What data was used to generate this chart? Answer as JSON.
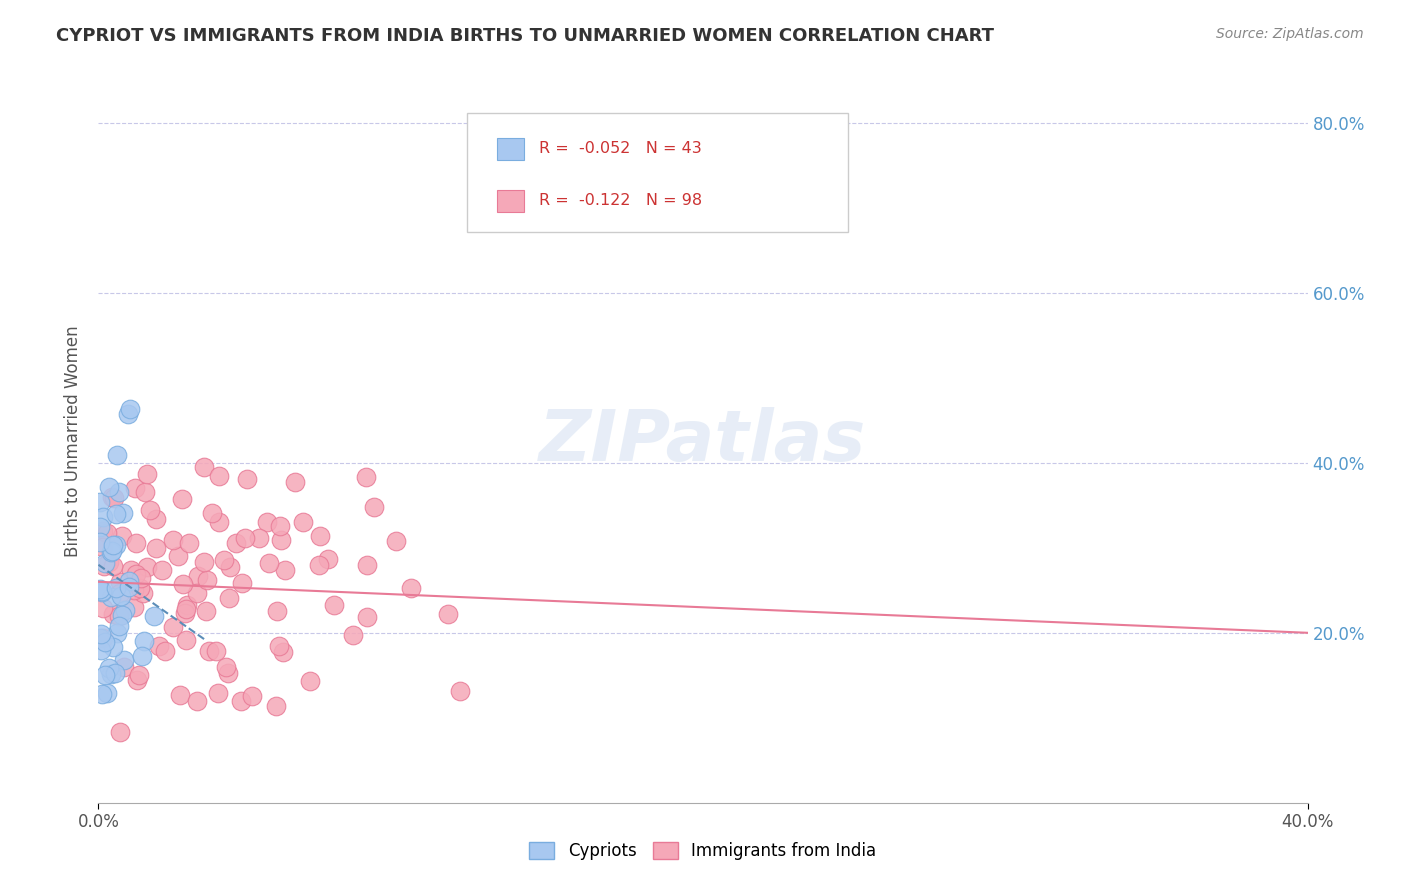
{
  "title": "CYPRIOT VS IMMIGRANTS FROM INDIA BIRTHS TO UNMARRIED WOMEN CORRELATION CHART",
  "source": "Source: ZipAtlas.com",
  "ylabel": "Births to Unmarried Women",
  "xlim": [
    0.0,
    0.4
  ],
  "ylim": [
    0.0,
    0.85
  ],
  "legend_r1": "R =  -0.052   N = 43",
  "legend_r2": "R =  -0.122   N = 98",
  "cypriot_color": "#a8c8f0",
  "india_color": "#f5a8b8",
  "cypriot_edge": "#7aaddf",
  "india_edge": "#e87a96",
  "trendline_cypriot_color": "#5b8db8",
  "trendline_india_color": "#e87a96",
  "watermark": "ZIPatlas",
  "background_color": "#ffffff",
  "grid_color": "#c8c8e8"
}
